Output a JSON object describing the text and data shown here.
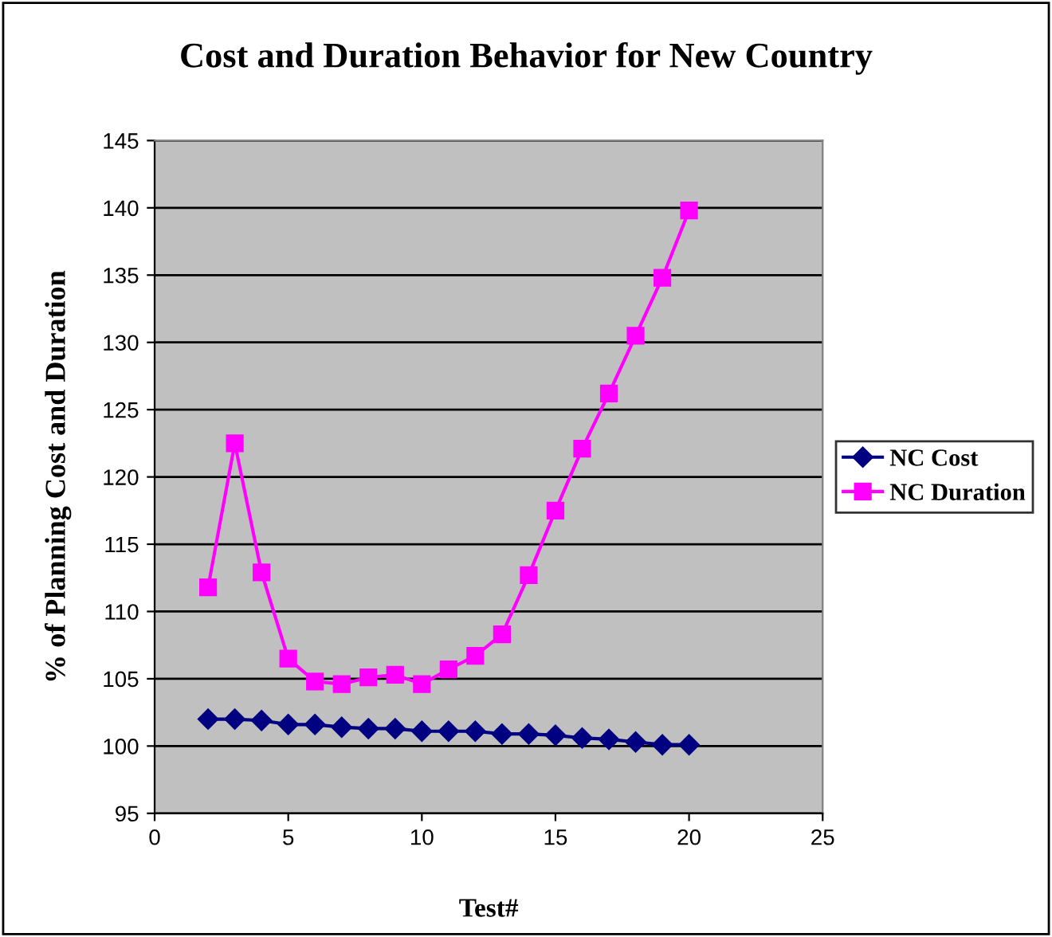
{
  "chart_data": {
    "type": "line",
    "title": "Cost and Duration Behavior for New Country",
    "xlabel": "Test#",
    "ylabel": "% of Planning Cost and Duration",
    "x": [
      2,
      3,
      4,
      5,
      6,
      7,
      8,
      9,
      10,
      11,
      12,
      13,
      14,
      15,
      16,
      17,
      18,
      19,
      20
    ],
    "series": [
      {
        "name": "NC Cost",
        "color": "#000080",
        "marker": "diamond",
        "values": [
          102.0,
          102.0,
          101.9,
          101.6,
          101.6,
          101.4,
          101.3,
          101.3,
          101.1,
          101.1,
          101.1,
          100.9,
          100.9,
          100.8,
          100.6,
          100.5,
          100.3,
          100.1,
          100.1
        ]
      },
      {
        "name": "NC Duration",
        "color": "#ff00ff",
        "marker": "square",
        "values": [
          111.8,
          122.5,
          112.9,
          106.5,
          104.8,
          104.6,
          105.1,
          105.3,
          104.6,
          105.7,
          106.7,
          108.3,
          112.7,
          117.5,
          122.1,
          126.2,
          130.5,
          134.8,
          139.8
        ]
      }
    ],
    "xlim": [
      0,
      25
    ],
    "xticks": [
      0,
      5,
      10,
      15,
      20,
      25
    ],
    "ylim": [
      95,
      145
    ],
    "yticks": [
      95,
      100,
      105,
      110,
      115,
      120,
      125,
      130,
      135,
      140,
      145
    ],
    "grid": "y",
    "legend": "right"
  }
}
